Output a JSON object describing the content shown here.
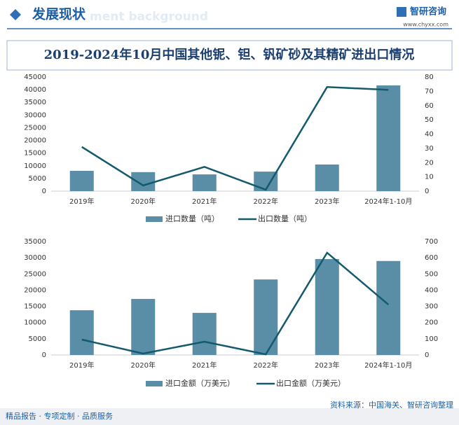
{
  "header": {
    "title": "发展现状",
    "watermark": "ment background",
    "logo": "智研咨询",
    "site": "www.chyxx.com"
  },
  "page_title": "2019-2024年10月中国其他铌、钽、钒矿砂及其精矿进出口情况",
  "chart_data": [
    {
      "type": "bar-line",
      "categories": [
        "2019年",
        "2020年",
        "2021年",
        "2022年",
        "2023年",
        "2024年1-10月"
      ],
      "series": [
        {
          "name": "进口数量（吨）",
          "color": "#5a8ea6",
          "values": [
            8000,
            7500,
            6600,
            7700,
            10500,
            41700
          ]
        },
        {
          "name": "出口数量（吨）",
          "color": "#135a6c",
          "axis": "y2",
          "values": [
            31,
            4,
            17,
            1,
            73,
            71
          ]
        }
      ],
      "ylim": [
        0,
        45000
      ],
      "yticks": [
        0,
        5000,
        10000,
        15000,
        20000,
        25000,
        30000,
        35000,
        40000,
        45000
      ],
      "y2lim": [
        0,
        80
      ],
      "y2ticks": [
        0,
        10,
        20,
        30,
        40,
        50,
        60,
        70,
        80
      ]
    },
    {
      "type": "bar-line",
      "categories": [
        "2019年",
        "2020年",
        "2021年",
        "2022年",
        "2023年",
        "2024年1-10月"
      ],
      "series": [
        {
          "name": "进口金额（万美元）",
          "color": "#5a8ea6",
          "values": [
            13800,
            17300,
            13000,
            23300,
            29600,
            29000
          ]
        },
        {
          "name": "出口金额（万美元）",
          "color": "#135a6c",
          "axis": "y2",
          "values": [
            95,
            9,
            82,
            4,
            631,
            311
          ]
        }
      ],
      "ylim": [
        0,
        35000
      ],
      "yticks": [
        0,
        5000,
        10000,
        15000,
        20000,
        25000,
        30000,
        35000
      ],
      "y2lim": [
        0,
        700
      ],
      "y2ticks": [
        0,
        100,
        200,
        300,
        400,
        500,
        600,
        700
      ]
    }
  ],
  "footer": {
    "left": "精品报告 · 专项定制 · 品质服务",
    "source": "资料来源：中国海关、智研咨询整理"
  }
}
